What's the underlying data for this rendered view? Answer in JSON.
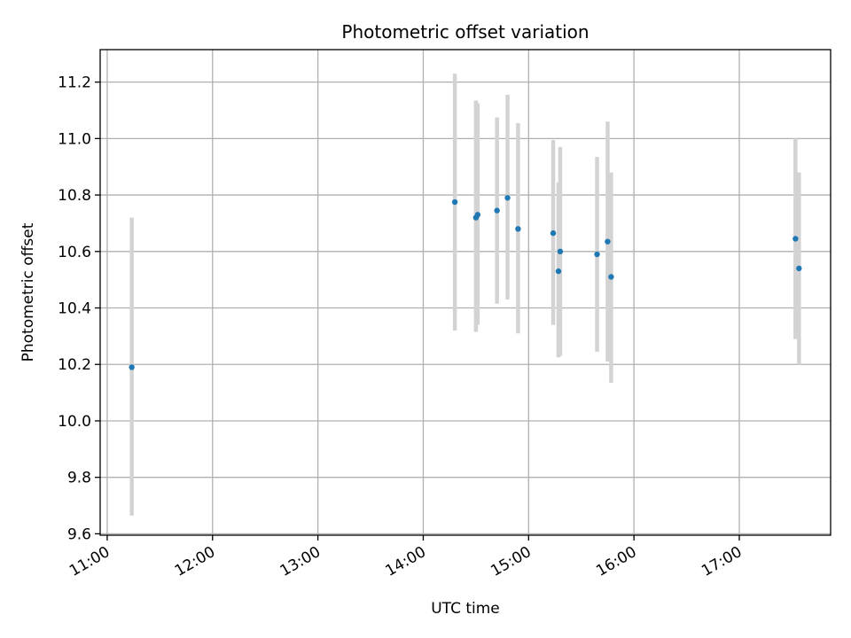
{
  "chart_data": {
    "type": "scatter",
    "title": "Photometric offset variation",
    "xlabel": "UTC time",
    "ylabel": "Photometric offset",
    "x_axis_type": "time",
    "xlim": [
      "10:56",
      "17:52"
    ],
    "ylim": [
      9.595,
      11.315
    ],
    "x_ticks": [
      "11:00",
      "12:00",
      "13:00",
      "14:00",
      "15:00",
      "16:00",
      "17:00"
    ],
    "y_ticks": [
      9.6,
      9.8,
      10.0,
      10.2,
      10.4,
      10.6,
      10.8,
      11.0,
      11.2
    ],
    "grid": true,
    "legend": "none",
    "colors": {
      "point": "#1f77b4",
      "error_bar": "#d3d3d3"
    },
    "series": [
      {
        "points": [
          {
            "x": "11:14",
            "y": 10.19,
            "ylow": 9.665,
            "yhigh": 10.72
          },
          {
            "x": "14:18",
            "y": 10.775,
            "ylow": 10.32,
            "yhigh": 11.23
          },
          {
            "x": "14:30",
            "y": 10.72,
            "ylow": 10.315,
            "yhigh": 11.135
          },
          {
            "x": "14:31",
            "y": 10.73,
            "ylow": 10.34,
            "yhigh": 11.125
          },
          {
            "x": "14:42",
            "y": 10.745,
            "ylow": 10.415,
            "yhigh": 11.075
          },
          {
            "x": "14:48",
            "y": 10.79,
            "ylow": 10.43,
            "yhigh": 11.155
          },
          {
            "x": "14:54",
            "y": 10.68,
            "ylow": 10.31,
            "yhigh": 11.055
          },
          {
            "x": "15:14",
            "y": 10.665,
            "ylow": 10.34,
            "yhigh": 10.995
          },
          {
            "x": "15:17",
            "y": 10.53,
            "ylow": 10.225,
            "yhigh": 10.845
          },
          {
            "x": "15:18",
            "y": 10.6,
            "ylow": 10.23,
            "yhigh": 10.97
          },
          {
            "x": "15:39",
            "y": 10.59,
            "ylow": 10.245,
            "yhigh": 10.935
          },
          {
            "x": "15:45",
            "y": 10.635,
            "ylow": 10.21,
            "yhigh": 11.06
          },
          {
            "x": "15:47",
            "y": 10.51,
            "ylow": 10.135,
            "yhigh": 10.88
          },
          {
            "x": "17:32",
            "y": 10.645,
            "ylow": 10.29,
            "yhigh": 11.0
          },
          {
            "x": "17:34",
            "y": 10.54,
            "ylow": 10.2,
            "yhigh": 10.88
          }
        ]
      }
    ]
  }
}
